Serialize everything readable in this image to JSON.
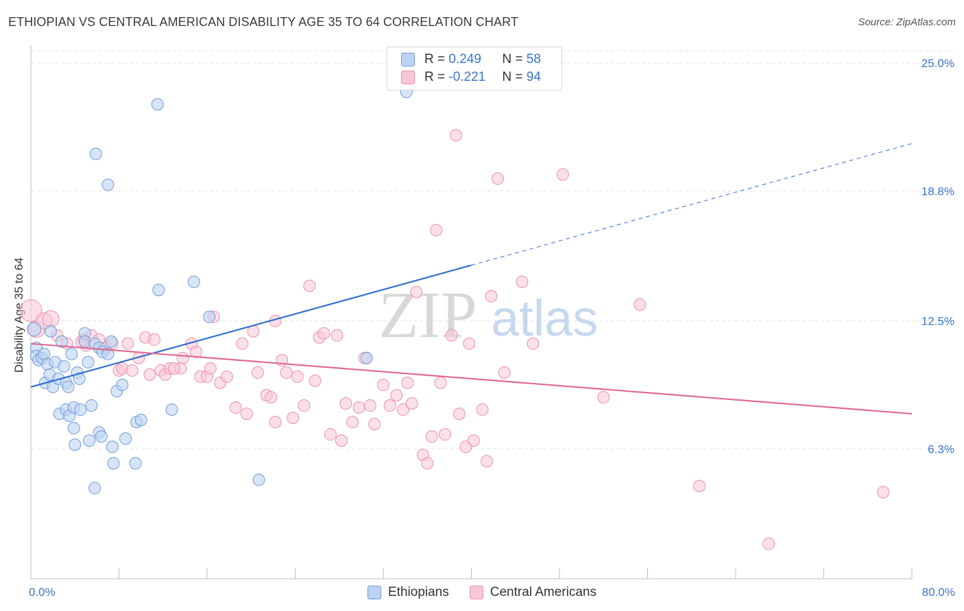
{
  "header": {
    "title": "ETHIOPIAN VS CENTRAL AMERICAN DISABILITY AGE 35 TO 64 CORRELATION CHART",
    "source": "Source: ZipAtlas.com"
  },
  "watermark": {
    "zip": "ZIP",
    "atlas": "atlas"
  },
  "legend": {
    "rows": [
      {
        "r_label": "R = ",
        "r_value": "0.249",
        "n_label": "N = ",
        "n_value": "58"
      },
      {
        "r_label": "R = ",
        "r_value": "-0.221",
        "n_label": "N = ",
        "n_value": "94"
      }
    ]
  },
  "bottom_legend": {
    "series_a": "Ethiopians",
    "series_b": "Central Americans"
  },
  "colors": {
    "blue_fill": "#bcd3f2",
    "blue_stroke": "#6e9bd9",
    "blue_line": "#2e6fd0",
    "pink_fill": "#f9c6d6",
    "pink_stroke": "#ea8fac",
    "pink_line": "#e06a95",
    "grid": "#e2e2e2",
    "axis_text": "#3a74c9"
  },
  "chart_data": {
    "type": "scatter",
    "title": "ETHIOPIAN VS CENTRAL AMERICAN DISABILITY AGE 35 TO 64 CORRELATION CHART",
    "xlabel": "",
    "ylabel": "Disability Age 35 to 64",
    "xlim": [
      0,
      80
    ],
    "ylim": [
      0,
      26
    ],
    "x_tick_labels": [
      "0.0%",
      "80.0%"
    ],
    "y_ticks": [
      6.3,
      12.5,
      18.8,
      25.0
    ],
    "y_tick_labels": [
      "6.3%",
      "12.5%",
      "18.8%",
      "25.0%"
    ],
    "series": [
      {
        "name": "Ethiopians",
        "R": 0.249,
        "N": 58,
        "trend": {
          "x0": 0,
          "y0": 9.3,
          "x1": 40,
          "y1": 15.2,
          "dash_to_x": 80,
          "dash_to_y": 21.1
        },
        "points": [
          [
            0.3,
            12.1
          ],
          [
            0.5,
            11.2
          ],
          [
            0.5,
            10.8
          ],
          [
            0.7,
            10.6
          ],
          [
            1.0,
            10.7
          ],
          [
            1.2,
            10.9
          ],
          [
            1.5,
            10.4
          ],
          [
            1.3,
            9.5
          ],
          [
            1.7,
            9.9
          ],
          [
            1.8,
            12.0
          ],
          [
            2.0,
            9.3
          ],
          [
            2.2,
            10.5
          ],
          [
            2.5,
            9.7
          ],
          [
            2.6,
            8.0
          ],
          [
            2.8,
            11.5
          ],
          [
            3.0,
            10.3
          ],
          [
            3.2,
            8.2
          ],
          [
            3.2,
            9.5
          ],
          [
            3.4,
            9.3
          ],
          [
            3.5,
            7.9
          ],
          [
            3.7,
            10.9
          ],
          [
            3.9,
            8.3
          ],
          [
            3.9,
            7.3
          ],
          [
            4.0,
            6.5
          ],
          [
            4.2,
            10.0
          ],
          [
            4.4,
            9.7
          ],
          [
            4.5,
            8.2
          ],
          [
            4.9,
            11.9
          ],
          [
            4.9,
            11.5
          ],
          [
            5.2,
            10.5
          ],
          [
            5.3,
            6.7
          ],
          [
            5.5,
            8.4
          ],
          [
            5.8,
            11.4
          ],
          [
            5.8,
            4.4
          ],
          [
            6.2,
            11.2
          ],
          [
            6.2,
            7.1
          ],
          [
            6.4,
            6.9
          ],
          [
            6.5,
            11.0
          ],
          [
            7.0,
            10.9
          ],
          [
            7.0,
            19.1
          ],
          [
            7.3,
            11.5
          ],
          [
            7.4,
            6.4
          ],
          [
            7.5,
            5.6
          ],
          [
            7.8,
            9.1
          ],
          [
            8.3,
            9.4
          ],
          [
            8.6,
            6.8
          ],
          [
            9.5,
            5.6
          ],
          [
            9.6,
            7.6
          ],
          [
            10.0,
            7.7
          ],
          [
            11.5,
            23.0
          ],
          [
            5.9,
            20.6
          ],
          [
            11.6,
            14.0
          ],
          [
            12.8,
            8.2
          ],
          [
            14.8,
            14.4
          ],
          [
            16.2,
            12.7
          ],
          [
            20.7,
            4.8
          ],
          [
            30.5,
            10.7
          ],
          [
            34.1,
            23.6
          ]
        ]
      },
      {
        "name": "Central Americans",
        "R": -0.221,
        "N": 94,
        "trend": {
          "x0": 0,
          "y0": 11.4,
          "x1": 80,
          "y1": 8.0
        },
        "points": [
          [
            0.0,
            13.0
          ],
          [
            0.5,
            12.1
          ],
          [
            1.2,
            12.5
          ],
          [
            1.8,
            12.6
          ],
          [
            2.4,
            11.8
          ],
          [
            3.3,
            11.4
          ],
          [
            4.8,
            11.6
          ],
          [
            5.0,
            11.3
          ],
          [
            5.5,
            11.8
          ],
          [
            6.2,
            11.6
          ],
          [
            6.8,
            11.2
          ],
          [
            7.4,
            11.4
          ],
          [
            8.0,
            10.1
          ],
          [
            8.3,
            10.2
          ],
          [
            8.8,
            11.4
          ],
          [
            9.8,
            10.7
          ],
          [
            10.4,
            11.7
          ],
          [
            10.8,
            9.9
          ],
          [
            11.2,
            11.6
          ],
          [
            11.8,
            10.1
          ],
          [
            12.2,
            9.9
          ],
          [
            12.6,
            10.2
          ],
          [
            13.6,
            10.2
          ],
          [
            13.8,
            10.7
          ],
          [
            14.6,
            11.4
          ],
          [
            15.0,
            11.0
          ],
          [
            15.4,
            9.8
          ],
          [
            16.0,
            9.8
          ],
          [
            16.3,
            10.2
          ],
          [
            16.6,
            12.7
          ],
          [
            17.2,
            9.5
          ],
          [
            17.8,
            9.8
          ],
          [
            18.6,
            8.3
          ],
          [
            19.2,
            11.4
          ],
          [
            19.6,
            8.0
          ],
          [
            20.2,
            12.0
          ],
          [
            20.6,
            10.0
          ],
          [
            21.4,
            8.9
          ],
          [
            21.8,
            8.8
          ],
          [
            22.2,
            12.5
          ],
          [
            22.2,
            7.6
          ],
          [
            22.8,
            10.6
          ],
          [
            23.2,
            10.0
          ],
          [
            23.8,
            7.8
          ],
          [
            24.2,
            9.8
          ],
          [
            24.8,
            8.4
          ],
          [
            25.3,
            14.2
          ],
          [
            25.8,
            9.6
          ],
          [
            26.2,
            11.7
          ],
          [
            26.6,
            11.9
          ],
          [
            27.2,
            7.0
          ],
          [
            27.8,
            11.8
          ],
          [
            28.2,
            6.7
          ],
          [
            28.6,
            8.5
          ],
          [
            29.2,
            7.6
          ],
          [
            29.8,
            8.3
          ],
          [
            30.3,
            10.7
          ],
          [
            30.8,
            8.4
          ],
          [
            31.2,
            7.5
          ],
          [
            32.0,
            9.4
          ],
          [
            32.6,
            8.4
          ],
          [
            33.2,
            8.9
          ],
          [
            33.8,
            8.2
          ],
          [
            34.2,
            9.5
          ],
          [
            34.6,
            8.5
          ],
          [
            35.0,
            13.9
          ],
          [
            35.6,
            6.0
          ],
          [
            36.0,
            5.6
          ],
          [
            36.4,
            6.9
          ],
          [
            36.8,
            16.9
          ],
          [
            37.2,
            9.5
          ],
          [
            37.6,
            7.0
          ],
          [
            38.2,
            11.8
          ],
          [
            38.6,
            21.5
          ],
          [
            38.9,
            8.0
          ],
          [
            39.5,
            6.4
          ],
          [
            39.8,
            11.4
          ],
          [
            40.2,
            6.7
          ],
          [
            41.0,
            8.2
          ],
          [
            41.4,
            5.7
          ],
          [
            41.8,
            13.7
          ],
          [
            42.4,
            19.4
          ],
          [
            43.0,
            10.0
          ],
          [
            44.6,
            14.4
          ],
          [
            45.6,
            11.4
          ],
          [
            48.3,
            19.6
          ],
          [
            52.0,
            8.8
          ],
          [
            55.3,
            13.3
          ],
          [
            60.7,
            4.5
          ],
          [
            67.0,
            1.7
          ],
          [
            77.4,
            4.2
          ],
          [
            4.6,
            11.5
          ],
          [
            9.2,
            10.1
          ],
          [
            13.0,
            10.2
          ]
        ]
      }
    ]
  }
}
